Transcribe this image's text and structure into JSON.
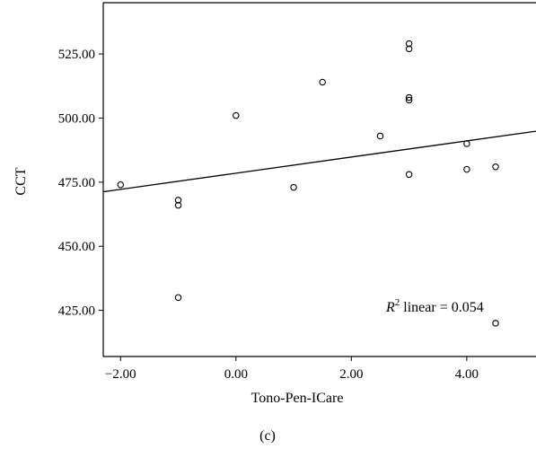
{
  "chart_data": {
    "type": "scatter",
    "xlabel": "Tono-Pen-ICare",
    "ylabel": "CCT",
    "panel_label": "(c)",
    "annotation": {
      "prefix": "R",
      "superscript": "2",
      "suffix": " linear = 0.054"
    },
    "xlim": [
      -2.3,
      5.2
    ],
    "ylim": [
      407,
      545
    ],
    "x_ticks": [
      -2.0,
      0.0,
      2.0,
      4.0
    ],
    "x_tick_labels": [
      "−2.00",
      "0.00",
      "2.00",
      "4.00"
    ],
    "y_ticks": [
      425,
      450,
      475,
      500,
      525
    ],
    "y_tick_labels": [
      "425.00",
      "450.00",
      "475.00",
      "500.00",
      "525.00"
    ],
    "points": [
      {
        "x": -2.0,
        "y": 474
      },
      {
        "x": -1.0,
        "y": 468
      },
      {
        "x": -1.0,
        "y": 466
      },
      {
        "x": -1.0,
        "y": 430
      },
      {
        "x": 0.0,
        "y": 501
      },
      {
        "x": 1.0,
        "y": 473
      },
      {
        "x": 1.5,
        "y": 514
      },
      {
        "x": 2.5,
        "y": 493
      },
      {
        "x": 3.0,
        "y": 529
      },
      {
        "x": 3.0,
        "y": 527
      },
      {
        "x": 3.0,
        "y": 508
      },
      {
        "x": 3.0,
        "y": 507
      },
      {
        "x": 3.0,
        "y": 478
      },
      {
        "x": 4.0,
        "y": 490
      },
      {
        "x": 4.0,
        "y": 480
      },
      {
        "x": 4.5,
        "y": 481
      },
      {
        "x": 4.5,
        "y": 420
      }
    ],
    "fit_line": {
      "slope": 3.15,
      "intercept": 478.5
    },
    "grid": false,
    "marker": "open-circle",
    "colors": {
      "ink": "#000000",
      "background": "#ffffff"
    }
  }
}
